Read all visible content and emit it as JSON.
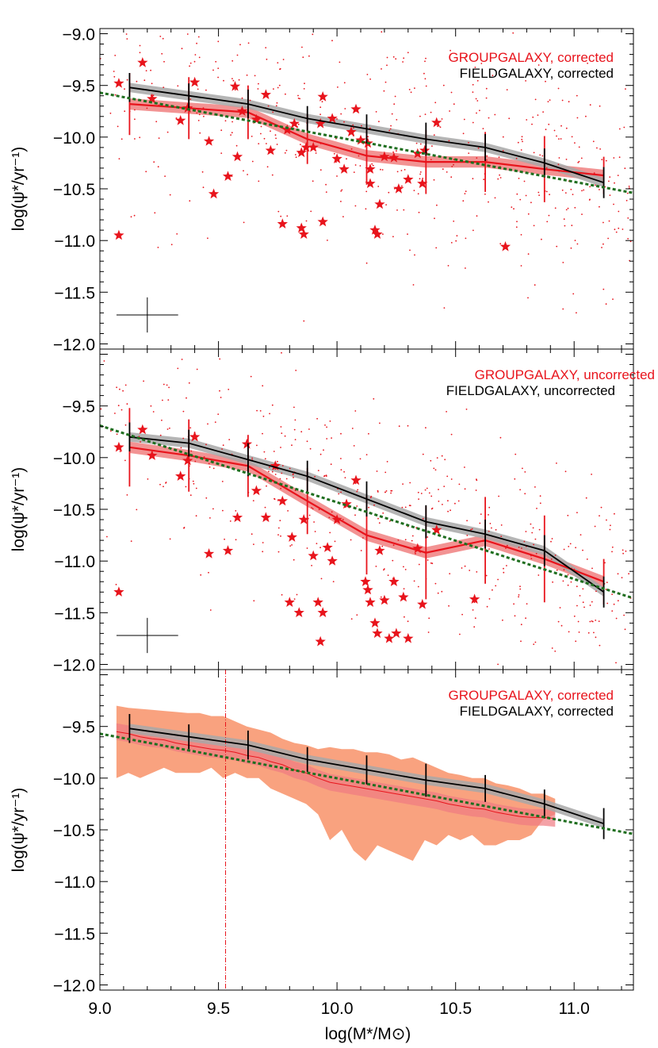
{
  "figure": {
    "xlabel": "log(M*/M⊙)"
  },
  "colors": {
    "group": "#e8141c",
    "field": "#000000",
    "fit": "#1f6e1f",
    "group_band": "#f08080",
    "field_band": "#a8a8a8",
    "scatter_band": "#f9a27f",
    "axis": "#000000"
  },
  "chart_data": [
    {
      "type": "line",
      "panel": "top",
      "ylabel": "log(ψ*/yr⁻¹)",
      "xlim": [
        9.0,
        11.25
      ],
      "ylim": [
        -12.05,
        -8.95
      ],
      "x_ticks": [
        9.0,
        9.5,
        10.0,
        10.5,
        11.0
      ],
      "y_ticks": [
        -12.0,
        -11.5,
        -11.0,
        -10.5,
        -10.0,
        -9.5,
        -9.0
      ],
      "y_tick_labels": [
        "−12.0",
        "−11.5",
        "−11.0",
        "−10.5",
        "−10.0",
        "−9.5",
        "−9.0"
      ],
      "legend": {
        "position": "top-right",
        "entries": [
          "GROUPGALAXY, corrected",
          "FIELDGALAXY, corrected"
        ]
      },
      "series": [
        {
          "name": "GROUPGALAXY, corrected",
          "x": [
            9.125,
            9.375,
            9.625,
            9.875,
            10.125,
            10.375,
            10.625,
            10.875,
            11.125
          ],
          "y": [
            -9.68,
            -9.72,
            -9.76,
            -10.02,
            -10.18,
            -10.24,
            -10.24,
            -10.31,
            -10.37
          ],
          "err": [
            0.3,
            0.3,
            0.26,
            0.24,
            0.28,
            0.31,
            0.29,
            0.32,
            0.18
          ]
        },
        {
          "name": "FIELDGALAXY, corrected",
          "x": [
            9.125,
            9.375,
            9.625,
            9.875,
            10.125,
            10.375,
            10.625,
            10.875,
            11.125
          ],
          "y": [
            -9.52,
            -9.6,
            -9.68,
            -9.82,
            -9.92,
            -10.02,
            -10.1,
            -10.25,
            -10.44
          ],
          "err": [
            0.14,
            0.12,
            0.14,
            0.12,
            0.14,
            0.16,
            0.13,
            0.14,
            0.15
          ]
        },
        {
          "name": "fit",
          "x": [
            9.0,
            11.25
          ],
          "y": [
            -9.57,
            -10.54
          ]
        }
      ],
      "scatter_markers": {
        "stars": [
          [
            9.08,
            -9.48
          ],
          [
            9.08,
            -10.95
          ],
          [
            9.18,
            -9.28
          ],
          [
            9.22,
            -9.63
          ],
          [
            9.34,
            -9.84
          ],
          [
            9.37,
            -9.72
          ],
          [
            9.4,
            -9.47
          ],
          [
            9.46,
            -10.04
          ],
          [
            9.48,
            -10.55
          ],
          [
            9.54,
            -10.38
          ],
          [
            9.57,
            -9.51
          ],
          [
            9.58,
            -10.19
          ],
          [
            9.6,
            -9.75
          ],
          [
            9.66,
            -9.83
          ],
          [
            9.7,
            -9.59
          ],
          [
            9.72,
            -10.13
          ],
          [
            9.77,
            -10.84
          ],
          [
            9.79,
            -9.93
          ],
          [
            9.82,
            -9.87
          ],
          [
            9.85,
            -10.15
          ],
          [
            9.85,
            -10.88
          ],
          [
            9.86,
            -10.94
          ],
          [
            9.87,
            -10.1
          ],
          [
            9.9,
            -10.1
          ],
          [
            9.93,
            -9.87
          ],
          [
            9.94,
            -9.61
          ],
          [
            9.94,
            -10.82
          ],
          [
            9.98,
            -9.82
          ],
          [
            10.0,
            -10.21
          ],
          [
            10.03,
            -10.31
          ],
          [
            10.06,
            -9.95
          ],
          [
            10.08,
            -9.73
          ],
          [
            10.1,
            -10.03
          ],
          [
            10.13,
            -10.06
          ],
          [
            10.14,
            -10.31
          ],
          [
            10.14,
            -10.45
          ],
          [
            10.16,
            -10.9
          ],
          [
            10.17,
            -10.94
          ],
          [
            10.18,
            -10.65
          ],
          [
            10.2,
            -10.19
          ],
          [
            10.24,
            -10.2
          ],
          [
            10.26,
            -10.5
          ],
          [
            10.3,
            -10.41
          ],
          [
            10.34,
            -10.16
          ],
          [
            10.36,
            -10.45
          ],
          [
            10.37,
            -10.13
          ],
          [
            10.42,
            -9.86
          ],
          [
            10.71,
            -11.06
          ]
        ],
        "dot_seed": 11
      },
      "crosshair": {
        "x": 9.2,
        "y": -11.72,
        "dx": 0.13,
        "dy": 0.17
      }
    },
    {
      "type": "line",
      "panel": "middle",
      "ylabel": "log(ψ*/yr⁻¹)",
      "xlim": [
        9.0,
        11.25
      ],
      "ylim": [
        -12.05,
        -8.95
      ],
      "x_ticks": [
        9.0,
        9.5,
        10.0,
        10.5,
        11.0
      ],
      "y_ticks": [
        -12.0,
        -11.5,
        -11.0,
        -10.5,
        -10.0,
        -9.5
      ],
      "y_tick_labels": [
        "−12.0",
        "−11.5",
        "−11.0",
        "−10.5",
        "−10.0",
        "−9.5"
      ],
      "legend": {
        "position": "top-right",
        "entries": [
          "GROUPGALAXY, uncorrected",
          "FIELDGALAXY, uncorrected"
        ]
      },
      "series": [
        {
          "name": "GROUPGALAXY, uncorrected",
          "x": [
            9.125,
            9.375,
            9.625,
            9.875,
            10.125,
            10.375,
            10.625,
            10.875,
            11.125
          ],
          "y": [
            -9.9,
            -9.98,
            -10.08,
            -10.42,
            -10.75,
            -10.92,
            -10.8,
            -10.98,
            -11.2
          ],
          "err": [
            0.38,
            0.35,
            0.3,
            0.32,
            0.38,
            0.45,
            0.42,
            0.42,
            0.22
          ]
        },
        {
          "name": "FIELDGALAXY, uncorrected",
          "x": [
            9.125,
            9.375,
            9.625,
            9.875,
            10.125,
            10.375,
            10.625,
            10.875,
            11.125
          ],
          "y": [
            -9.8,
            -9.86,
            -10.02,
            -10.18,
            -10.4,
            -10.62,
            -10.74,
            -10.9,
            -11.3
          ],
          "err": [
            0.14,
            0.13,
            0.16,
            0.15,
            0.17,
            0.16,
            0.14,
            0.15,
            0.15
          ]
        },
        {
          "name": "fit",
          "x": [
            9.0,
            11.25
          ],
          "y": [
            -9.69,
            -11.36
          ]
        }
      ],
      "scatter_markers": {
        "stars": [
          [
            9.08,
            -9.9
          ],
          [
            9.08,
            -11.3
          ],
          [
            9.18,
            -9.73
          ],
          [
            9.22,
            -9.98
          ],
          [
            9.34,
            -10.18
          ],
          [
            9.37,
            -10.03
          ],
          [
            9.4,
            -9.8
          ],
          [
            9.46,
            -10.93
          ],
          [
            9.54,
            -10.9
          ],
          [
            9.58,
            -10.58
          ],
          [
            9.62,
            -9.87
          ],
          [
            9.66,
            -10.32
          ],
          [
            9.7,
            -10.58
          ],
          [
            9.74,
            -10.08
          ],
          [
            9.77,
            -10.42
          ],
          [
            9.8,
            -11.4
          ],
          [
            9.81,
            -10.77
          ],
          [
            9.84,
            -11.5
          ],
          [
            9.86,
            -10.6
          ],
          [
            9.9,
            -10.95
          ],
          [
            9.92,
            -11.4
          ],
          [
            9.93,
            -11.78
          ],
          [
            9.94,
            -11.5
          ],
          [
            9.96,
            -10.87
          ],
          [
            9.98,
            -11.0
          ],
          [
            10.0,
            -10.6
          ],
          [
            10.04,
            -10.45
          ],
          [
            10.08,
            -10.22
          ],
          [
            10.12,
            -11.2
          ],
          [
            10.13,
            -11.28
          ],
          [
            10.14,
            -11.4
          ],
          [
            10.16,
            -11.6
          ],
          [
            10.17,
            -11.7
          ],
          [
            10.18,
            -10.9
          ],
          [
            10.2,
            -11.38
          ],
          [
            10.22,
            -11.75
          ],
          [
            10.24,
            -11.2
          ],
          [
            10.25,
            -11.7
          ],
          [
            10.28,
            -11.35
          ],
          [
            10.3,
            -11.75
          ],
          [
            10.34,
            -10.88
          ],
          [
            10.36,
            -11.42
          ],
          [
            10.42,
            -10.7
          ],
          [
            10.58,
            -11.37
          ]
        ],
        "dot_seed": 29
      },
      "crosshair": {
        "x": 9.2,
        "y": -11.72,
        "dx": 0.13,
        "dy": 0.17
      }
    },
    {
      "type": "area",
      "panel": "bottom",
      "ylabel": "log(ψ*/yr⁻¹)",
      "xlabel": "log(M*/M⊙)",
      "xlim": [
        9.0,
        11.25
      ],
      "ylim": [
        -12.05,
        -8.95
      ],
      "x_ticks": [
        9.0,
        9.5,
        10.0,
        10.5,
        11.0
      ],
      "x_tick_labels": [
        "9.0",
        "9.5",
        "10.0",
        "10.5",
        "11.0"
      ],
      "y_ticks": [
        -12.0,
        -11.5,
        -11.0,
        -10.5,
        -10.0,
        -9.5
      ],
      "y_tick_labels": [
        "−12.0",
        "−11.5",
        "−11.0",
        "−10.5",
        "−10.0",
        "−9.5"
      ],
      "legend": {
        "position": "top-right",
        "entries": [
          "GROUPGALAXY, corrected",
          "FIELDGALAXY, corrected"
        ]
      },
      "vline_x": 9.53,
      "series": [
        {
          "name": "FIELDGALAXY, corrected",
          "x": [
            9.125,
            9.375,
            9.625,
            9.875,
            10.125,
            10.375,
            10.625,
            10.875,
            11.125
          ],
          "y": [
            -9.52,
            -9.6,
            -9.68,
            -9.82,
            -9.92,
            -10.02,
            -10.1,
            -10.25,
            -10.44
          ],
          "err": [
            0.14,
            0.12,
            0.14,
            0.12,
            0.14,
            0.16,
            0.13,
            0.14,
            0.15
          ]
        },
        {
          "name": "fit",
          "x": [
            9.0,
            11.25
          ],
          "y": [
            -9.57,
            -10.54
          ]
        }
      ],
      "group_running": {
        "x": [
          9.07,
          9.12,
          9.17,
          9.22,
          9.27,
          9.32,
          9.37,
          9.42,
          9.47,
          9.52,
          9.57,
          9.62,
          9.67,
          9.72,
          9.77,
          9.82,
          9.87,
          9.92,
          9.97,
          10.02,
          10.07,
          10.12,
          10.17,
          10.22,
          10.27,
          10.32,
          10.37,
          10.42,
          10.47,
          10.52,
          10.57,
          10.62,
          10.67,
          10.72,
          10.77,
          10.82,
          10.87,
          10.92
        ],
        "median": [
          -9.55,
          -9.57,
          -9.6,
          -9.62,
          -9.63,
          -9.66,
          -9.68,
          -9.7,
          -9.72,
          -9.73,
          -9.75,
          -9.78,
          -9.8,
          -9.84,
          -9.87,
          -9.92,
          -9.95,
          -10.0,
          -10.04,
          -10.06,
          -10.08,
          -10.1,
          -10.12,
          -10.14,
          -10.16,
          -10.18,
          -10.2,
          -10.22,
          -10.25,
          -10.27,
          -10.29,
          -10.3,
          -10.33,
          -10.35,
          -10.37,
          -10.38,
          -10.38,
          -10.39
        ],
        "upper": [
          -9.3,
          -9.32,
          -9.33,
          -9.34,
          -9.35,
          -9.36,
          -9.37,
          -9.37,
          -9.4,
          -9.4,
          -9.45,
          -9.5,
          -9.53,
          -9.56,
          -9.62,
          -9.66,
          -9.68,
          -9.72,
          -9.7,
          -9.72,
          -9.72,
          -9.75,
          -9.75,
          -9.77,
          -9.82,
          -9.8,
          -9.85,
          -9.9,
          -9.95,
          -9.97,
          -10.0,
          -10.0,
          -10.05,
          -10.07,
          -10.1,
          -10.15,
          -10.15,
          -10.2
        ],
        "lower": [
          -10.0,
          -9.95,
          -10.0,
          -9.95,
          -9.9,
          -9.95,
          -9.95,
          -9.95,
          -9.9,
          -10.0,
          -9.95,
          -10.0,
          -10.0,
          -10.1,
          -10.15,
          -10.2,
          -10.25,
          -10.35,
          -10.6,
          -10.5,
          -10.7,
          -10.8,
          -10.65,
          -10.7,
          -10.75,
          -10.8,
          -10.6,
          -10.65,
          -10.55,
          -10.6,
          -10.55,
          -10.65,
          -10.65,
          -10.6,
          -10.6,
          -10.55,
          -10.4,
          -10.35
        ]
      }
    }
  ]
}
